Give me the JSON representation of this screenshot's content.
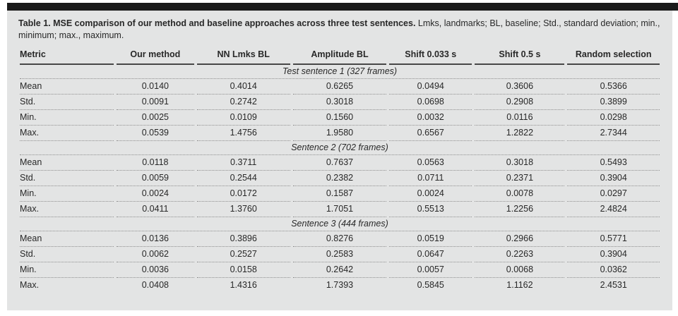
{
  "caption": {
    "bold": "Table 1. MSE comparison of our method and baseline approaches across three test sentences.",
    "rest": " Lmks, landmarks; BL, baseline; Std., standard deviation; min., minimum; max., maximum."
  },
  "table": {
    "columns": [
      "Metric",
      "Our method",
      "NN Lmks BL",
      "Amplitude BL",
      "Shift 0.033 s",
      "Shift 0.5 s",
      "Random selection"
    ],
    "column_widths_pct": [
      15.1,
      12.4,
      15.0,
      15.0,
      13.3,
      14.4,
      14.8
    ],
    "sections": [
      {
        "title": "Test sentence 1 (327 frames)",
        "rows": [
          {
            "metric": "Mean",
            "values": [
              "0.0140",
              "0.4014",
              "0.6265",
              "0.0494",
              "0.3606",
              "0.5366"
            ]
          },
          {
            "metric": "Std.",
            "values": [
              "0.0091",
              "0.2742",
              "0.3018",
              "0.0698",
              "0.2908",
              "0.3899"
            ]
          },
          {
            "metric": "Min.",
            "values": [
              "0.0025",
              "0.0109",
              "0.1560",
              "0.0032",
              "0.0116",
              "0.0298"
            ]
          },
          {
            "metric": "Max.",
            "values": [
              "0.0539",
              "1.4756",
              "1.9580",
              "0.6567",
              "1.2822",
              "2.7344"
            ]
          }
        ]
      },
      {
        "title": "Sentence 2 (702 frames)",
        "rows": [
          {
            "metric": "Mean",
            "values": [
              "0.0118",
              "0.3711",
              "0.7637",
              "0.0563",
              "0.3018",
              "0.5493"
            ]
          },
          {
            "metric": "Std.",
            "values": [
              "0.0059",
              "0.2544",
              "0.2382",
              "0.0711",
              "0.2371",
              "0.3904"
            ]
          },
          {
            "metric": "Min.",
            "values": [
              "0.0024",
              "0.0172",
              "0.1587",
              "0.0024",
              "0.0078",
              "0.0297"
            ]
          },
          {
            "metric": "Max.",
            "values": [
              "0.0411",
              "1.3760",
              "1.7051",
              "0.5513",
              "1.2256",
              "2.4824"
            ]
          }
        ]
      },
      {
        "title": "Sentence 3 (444 frames)",
        "rows": [
          {
            "metric": "Mean",
            "values": [
              "0.0136",
              "0.3896",
              "0.8276",
              "0.0519",
              "0.2966",
              "0.5771"
            ]
          },
          {
            "metric": "Std.",
            "values": [
              "0.0062",
              "0.2527",
              "0.2583",
              "0.0647",
              "0.2263",
              "0.3904"
            ]
          },
          {
            "metric": "Min.",
            "values": [
              "0.0036",
              "0.0158",
              "0.2642",
              "0.0057",
              "0.0068",
              "0.0362"
            ]
          },
          {
            "metric": "Max.",
            "values": [
              "0.0408",
              "1.4316",
              "1.7393",
              "0.5845",
              "1.1162",
              "2.4531"
            ]
          }
        ]
      }
    ]
  },
  "colors": {
    "panel_background": "#e3e4e4",
    "top_bar": "#1a1a1a",
    "text": "#282828",
    "header_rule": "#474747",
    "dotted_rule": "#8f8f8f"
  }
}
